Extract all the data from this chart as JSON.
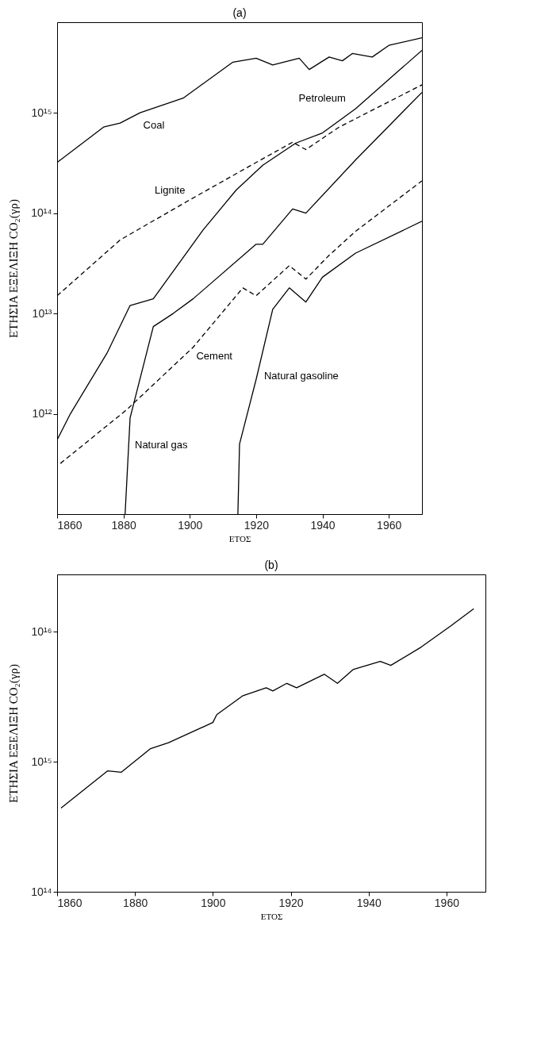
{
  "chart_data": [
    {
      "type": "line",
      "title": "(a)",
      "xlabel": "ΕΤΟΣ",
      "ylabel": "ΕΤΗΣΙΑ ΕΞΕΛΙΞΗ CO₂(γρ)",
      "log": "y",
      "grid": false,
      "xlim": [
        1860,
        1970
      ],
      "xticks": [
        1860,
        1880,
        1900,
        1920,
        1940,
        1960
      ],
      "ylim": [
        100000000000.0,
        8000000000000000.0
      ],
      "yticks": [
        {
          "value": 1000000000000.0,
          "label": "10¹²"
        },
        {
          "value": 10000000000000.0,
          "label": "10¹³"
        },
        {
          "value": 100000000000000.0,
          "label": "10¹⁴"
        },
        {
          "value": 1000000000000000.0,
          "label": "10¹⁵"
        }
      ],
      "series": [
        {
          "name": "Coal",
          "color": "#000000",
          "line_style": "solid",
          "x": [
            1860,
            1874,
            1879,
            1885,
            1898,
            1913,
            1920,
            1925,
            1933,
            1936,
            1942,
            1946,
            1949,
            1955,
            1960,
            1970
          ],
          "values": [
            320000000000000.0,
            720000000000000.0,
            790000000000000.0,
            1000000000000000.0,
            1400000000000000.0,
            3200000000000000.0,
            3500000000000000.0,
            3000000000000000.0,
            3500000000000000.0,
            2700000000000000.0,
            3600000000000000.0,
            3300000000000000.0,
            3900000000000000.0,
            3600000000000000.0,
            4700000000000000.0,
            5600000000000000.0
          ]
        },
        {
          "name": "Petroleum",
          "color": "#000000",
          "line_style": "solid",
          "x": [
            1860,
            1864,
            1875,
            1882,
            1889,
            1904,
            1914,
            1922,
            1932,
            1940,
            1950,
            1970
          ],
          "values": [
            550000000000.0,
            1000000000000.0,
            4000000000000.0,
            12000000000000.0,
            14000000000000.0,
            68000000000000.0,
            170000000000000.0,
            300000000000000.0,
            500000000000000.0,
            630000000000000.0,
            1100000000000000.0,
            4200000000000000.0
          ]
        },
        {
          "name": "Lignite",
          "color": "#000000",
          "line_style": "dashed",
          "x": [
            1860,
            1879,
            1899,
            1920,
            1931,
            1935,
            1945,
            1970
          ],
          "values": [
            15000000000000.0,
            54000000000000.0,
            130000000000000.0,
            320000000000000.0,
            510000000000000.0,
            430000000000000.0,
            720000000000000.0,
            1900000000000000.0
          ]
        },
        {
          "name": "Natural gas",
          "color": "#000000",
          "line_style": "solid",
          "x": [
            1880.5,
            1882,
            1889,
            1895,
            1901,
            1920,
            1922,
            1931,
            1935,
            1950,
            1970
          ],
          "values": [
            100000000000.0,
            910000000000.0,
            7400000000000.0,
            10000000000000.0,
            14000000000000.0,
            49000000000000.0,
            49000000000000.0,
            110000000000000.0,
            100000000000000.0,
            340000000000000.0,
            1600000000000000.0
          ]
        },
        {
          "name": "Cement",
          "color": "#000000",
          "line_style": "dashed",
          "x": [
            1861,
            1881,
            1901,
            1916,
            1920,
            1930,
            1935,
            1942,
            1950,
            1970
          ],
          "values": [
            320000000000.0,
            1100000000000.0,
            4600000000000.0,
            18000000000000.0,
            15000000000000.0,
            30000000000000.0,
            22000000000000.0,
            38000000000000.0,
            66000000000000.0,
            210000000000000.0
          ]
        },
        {
          "name": "Natural gasoline",
          "color": "#000000",
          "line_style": "solid",
          "x": [
            1914.5,
            1915,
            1920,
            1925,
            1930,
            1935,
            1940,
            1950,
            1970
          ],
          "values": [
            100000000000.0,
            500000000000.0,
            2200000000000.0,
            11000000000000.0,
            18000000000000.0,
            13000000000000.0,
            23000000000000.0,
            40000000000000.0,
            83000000000000.0
          ]
        }
      ]
    },
    {
      "type": "line",
      "title": "(b)",
      "xlabel": "ΕΤΟΣ",
      "ylabel": "ΕΤΗΣΙΑ ΕΞΕΛΙΞΗ CO₂(γρ)",
      "log": "y",
      "grid": false,
      "xlim": [
        1860,
        1970
      ],
      "xticks": [
        1860,
        1880,
        1900,
        1920,
        1940,
        1960
      ],
      "ylim": [
        100000000000000.0,
        2.75e+16
      ],
      "yticks": [
        {
          "value": 100000000000000.0,
          "label": "10¹⁴"
        },
        {
          "value": 1000000000000000.0,
          "label": "10¹⁵"
        },
        {
          "value": 1e+16,
          "label": "10¹⁶"
        }
      ],
      "series": [
        {
          "color": "#000000",
          "line_style": "solid",
          "x": [
            1861,
            1873,
            1876.5,
            1884,
            1888.6,
            1900,
            1901,
            1907.6,
            1913.7,
            1915.4,
            1919,
            1921.5,
            1928.6,
            1932,
            1936,
            1943,
            1945.7,
            1953.5,
            1961,
            1967
          ],
          "values": [
            440000000000000.0,
            850000000000000.0,
            830000000000000.0,
            1260000000000000.0,
            1400000000000000.0,
            2000000000000000.0,
            2300000000000000.0,
            3200000000000000.0,
            3700000000000000.0,
            3500000000000000.0,
            4000000000000000.0,
            3700000000000000.0,
            4700000000000000.0,
            4000000000000000.0,
            5100000000000000.0,
            5900000000000000.0,
            5500000000000000.0,
            7600000000000000.0,
            1.1e+16,
            1.5e+16
          ]
        }
      ]
    }
  ]
}
